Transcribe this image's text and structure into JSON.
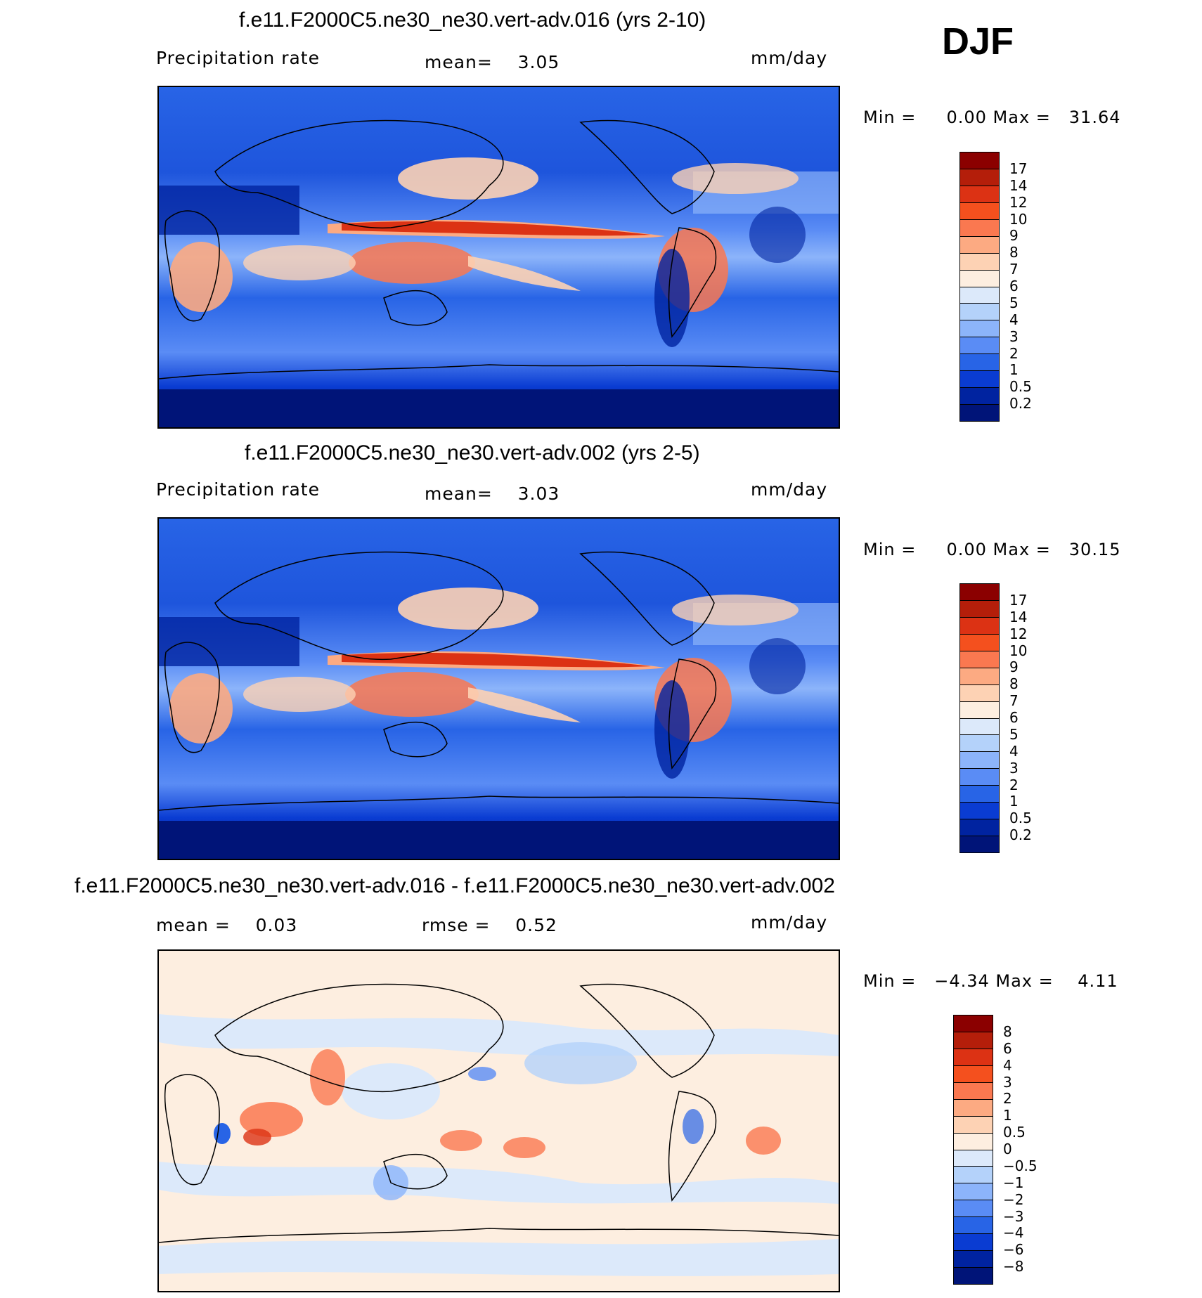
{
  "season": "DJF",
  "panels": [
    {
      "title": "f.e11.F2000C5.ne30_ne30.vert-adv.016 (yrs 2-10)",
      "left_text": "Precipitation rate",
      "center_text": "mean=    3.05",
      "units": "mm/day",
      "minmax": "Min =     0.00 Max =   31.64",
      "levels": [
        "17",
        "14",
        "12",
        "10",
        "9",
        "8",
        "7",
        "6",
        "5",
        "4",
        "3",
        "2",
        "1",
        "0.5",
        "0.2"
      ],
      "colors": [
        "#8b0000",
        "#b41e0a",
        "#dc3214",
        "#f4501e",
        "#fa7850",
        "#fcaa82",
        "#fdd2b4",
        "#fdeee0",
        "#dce9fa",
        "#b4d2fa",
        "#8cb4fa",
        "#5a8cf5",
        "#2864e6",
        "#0a3cd2",
        "#0023a0",
        "#001478"
      ]
    },
    {
      "title": "f.e11.F2000C5.ne30_ne30.vert-adv.002 (yrs 2-5)",
      "left_text": "Precipitation rate",
      "center_text": "mean=    3.03",
      "units": "mm/day",
      "minmax": "Min =     0.00 Max =   30.15",
      "levels": [
        "17",
        "14",
        "12",
        "10",
        "9",
        "8",
        "7",
        "6",
        "5",
        "4",
        "3",
        "2",
        "1",
        "0.5",
        "0.2"
      ],
      "colors": [
        "#8b0000",
        "#b41e0a",
        "#dc3214",
        "#f4501e",
        "#fa7850",
        "#fcaa82",
        "#fdd2b4",
        "#fdeee0",
        "#dce9fa",
        "#b4d2fa",
        "#8cb4fa",
        "#5a8cf5",
        "#2864e6",
        "#0a3cd2",
        "#0023a0",
        "#001478"
      ]
    },
    {
      "title": "f.e11.F2000C5.ne30_ne30.vert-adv.016 - f.e11.F2000C5.ne30_ne30.vert-adv.002",
      "left_text": "mean =    0.03",
      "center_text": "rmse =    0.52",
      "units": "mm/day",
      "minmax": "Min =   −4.34 Max =    4.11",
      "levels": [
        "8",
        "6",
        "4",
        "3",
        "2",
        "1",
        "0.5",
        "0",
        "−0.5",
        "−1",
        "−2",
        "−3",
        "−4",
        "−6",
        "−8"
      ],
      "colors": [
        "#8b0000",
        "#b41e0a",
        "#dc3214",
        "#f4501e",
        "#fa7850",
        "#fcaa82",
        "#fdd2b4",
        "#fdeee0",
        "#dce9fa",
        "#b4d2fa",
        "#8cb4fa",
        "#5a8cf5",
        "#2864e6",
        "#0a3cd2",
        "#0023a0",
        "#001478"
      ]
    }
  ]
}
